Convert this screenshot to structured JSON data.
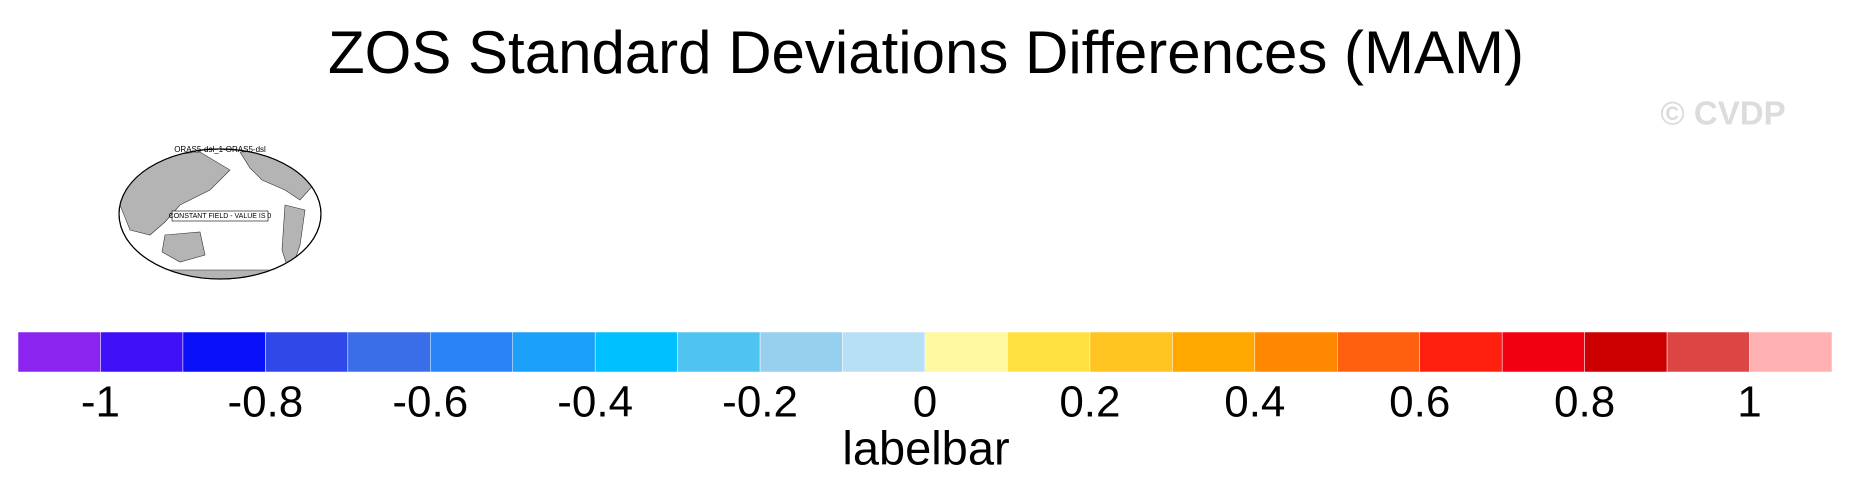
{
  "title": "ZOS Standard Deviations Differences (MAM)",
  "watermark": "© CVDP",
  "map": {
    "title": "ORAS5-dsl_1-ORAS5-dsl",
    "label": "CONSTANT FIELD - VALUE IS 0"
  },
  "labelbar": {
    "label": "labelbar",
    "colors": [
      "#8a24ee",
      "#4010f8",
      "#0a10f8",
      "#3048e8",
      "#3a6ee8",
      "#2a84f8",
      "#1aa0f8",
      "#00c0ff",
      "#50c4f0",
      "#96d0ee",
      "#b8e0f5",
      "#fff8a0",
      "#ffe040",
      "#ffc420",
      "#ffa800",
      "#ff8800",
      "#ff6010",
      "#ff2010",
      "#f00010",
      "#cc0000",
      "#dd4444",
      "#ffb0b0"
    ],
    "ticks": [
      -1,
      -0.8,
      -0.6,
      -0.4,
      -0.2,
      0,
      0.2,
      0.4,
      0.6,
      0.8,
      1
    ]
  }
}
